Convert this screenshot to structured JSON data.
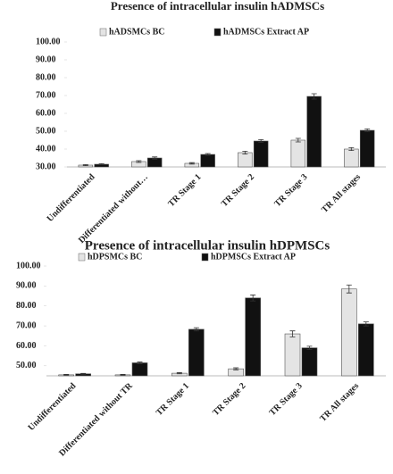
{
  "chart_data": [
    {
      "type": "bar",
      "title": "Presence of intracellular insulin hADMSCs",
      "categories": [
        "Undifferentiated",
        "Differentiated without…",
        "TR Stage 1",
        "TR Stage 2",
        "TR Stage 3",
        "TR All stages"
      ],
      "series": [
        {
          "name": "hADSMCs BC",
          "color": "#e4e4e4",
          "values": [
            31,
            33,
            32,
            38,
            45,
            40
          ],
          "errors": [
            0.3,
            0.5,
            0.4,
            0.8,
            1,
            0.8
          ]
        },
        {
          "name": "hADMSCs Extract AP",
          "color": "#111111",
          "values": [
            31.5,
            35,
            37,
            44.5,
            69.5,
            50.5
          ],
          "errors": [
            0.3,
            0.6,
            0.5,
            0.8,
            1.5,
            0.8
          ]
        }
      ],
      "ylim": [
        30,
        100
      ],
      "yticks": [
        {
          "value": 30,
          "label": "30.00"
        },
        {
          "value": 40,
          "label": "40.00"
        },
        {
          "value": 50,
          "label": "50.00"
        },
        {
          "value": 60,
          "label": "60.00"
        },
        {
          "value": 70,
          "label": "70.00"
        },
        {
          "value": 80,
          "label": "80.00"
        },
        {
          "value": 90,
          "label": "90.00"
        },
        {
          "value": 100,
          "label": "100.00"
        }
      ],
      "legend": "top"
    },
    {
      "type": "bar",
      "title": "Presence of intracellular insulin hDPMSCs",
      "categories": [
        "Undifferentiated",
        "Differentiated without TR",
        "TR Stage 1",
        "TR Stage 2",
        "TR Stage 3",
        "TR All stages"
      ],
      "series": [
        {
          "name": "hDPSMCs BC",
          "color": "#e4e4e4",
          "values": [
            45.5,
            45.5,
            46.3,
            48.5,
            66,
            88.5
          ],
          "errors": [
            0.2,
            0.2,
            0.3,
            0.5,
            1.5,
            2
          ]
        },
        {
          "name": "hDPMSCs Extract AP",
          "color": "#111111",
          "values": [
            46,
            51.5,
            68.3,
            84,
            59,
            71
          ],
          "errors": [
            0.2,
            0.4,
            0.8,
            1.5,
            0.8,
            1
          ]
        }
      ],
      "ylim": [
        45,
        100
      ],
      "yticks": [
        {
          "value": 50,
          "label": "50.00"
        },
        {
          "value": 60,
          "label": "60.00"
        },
        {
          "value": 70,
          "label": "70.00"
        },
        {
          "value": 80,
          "label": "80.00"
        },
        {
          "value": 90,
          "label": "90.00"
        },
        {
          "value": 100,
          "label": "100.00"
        }
      ],
      "legend": "top"
    }
  ]
}
